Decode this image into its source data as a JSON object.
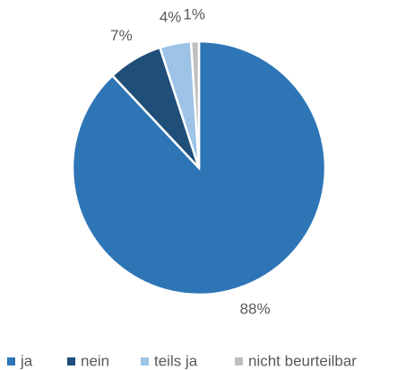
{
  "chart_data": {
    "type": "pie",
    "categories": [
      "ja",
      "nein",
      "teils ja",
      "nicht beurteilbar"
    ],
    "values": [
      88,
      7,
      4,
      1
    ],
    "value_labels": [
      "88%",
      "7%",
      "4%",
      "1%"
    ],
    "colors": [
      "#2e75b6",
      "#1f4e79",
      "#9dc3e6",
      "#bfbfbf"
    ],
    "legend": "bottom"
  }
}
